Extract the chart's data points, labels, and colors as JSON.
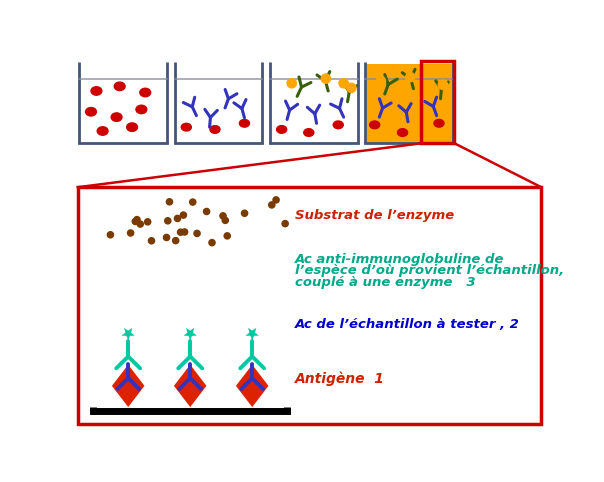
{
  "background_color": "#ffffff",
  "fig_width": 6.04,
  "fig_height": 4.82,
  "dpi": 100,
  "box4_bg": "#FFA500",
  "red_color": "#cc0000",
  "blue_ab_color": "#3333bb",
  "dark_green_color": "#3a5f0b",
  "teal_color": "#00c8a0",
  "orange_dot": "#FFA500",
  "brown_dot": "#7a3b00",
  "label1_color": "#cc2200",
  "label2_color": "#0000cc",
  "label3_color": "#00aa88",
  "label_substrate_color": "#cc2200",
  "beaker_line_color": "#445577",
  "antigen_label": "Antigène  1",
  "ac_sample_label": "Ac de l’échantillon à tester , 2",
  "ac_anti_label1": "Ac anti-immunoglobuline de",
  "ac_anti_label2": "l’espèce d’où provient l’échantillon,",
  "ac_anti_label3": "couplé à une enzyme   3",
  "substrate_label": "Substrat de l’enzyme"
}
